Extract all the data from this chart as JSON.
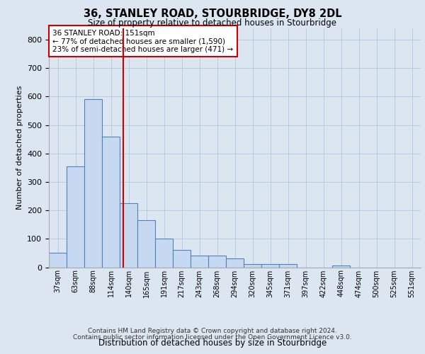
{
  "title": "36, STANLEY ROAD, STOURBRIDGE, DY8 2DL",
  "subtitle": "Size of property relative to detached houses in Stourbridge",
  "xlabel": "Distribution of detached houses by size in Stourbridge",
  "ylabel": "Number of detached properties",
  "footer_line1": "Contains HM Land Registry data © Crown copyright and database right 2024.",
  "footer_line2": "Contains public sector information licensed under the Open Government Licence v3.0.",
  "bar_labels": [
    "37sqm",
    "63sqm",
    "88sqm",
    "114sqm",
    "140sqm",
    "165sqm",
    "191sqm",
    "217sqm",
    "243sqm",
    "268sqm",
    "294sqm",
    "320sqm",
    "345sqm",
    "371sqm",
    "397sqm",
    "422sqm",
    "448sqm",
    "474sqm",
    "500sqm",
    "525sqm",
    "551sqm"
  ],
  "bar_values": [
    50,
    355,
    590,
    460,
    225,
    165,
    100,
    60,
    40,
    40,
    30,
    10,
    10,
    10,
    0,
    0,
    5,
    0,
    0,
    0,
    0
  ],
  "bar_color": "#c6d9f0",
  "bar_edge_color": "#4f81bd",
  "bg_color": "#dce6f1",
  "grid_color": "#b8cce4",
  "annotation_line1": "36 STANLEY ROAD: 151sqm",
  "annotation_line2": "← 77% of detached houses are smaller (1,590)",
  "annotation_line3": "23% of semi-detached houses are larger (471) →",
  "ann_box_color": "#ffffff",
  "ann_border_color": "#cc0000",
  "vline_x": 3.68,
  "vline_color": "#cc0000",
  "ylim_max": 840,
  "yticks": [
    0,
    100,
    200,
    300,
    400,
    500,
    600,
    700,
    800
  ]
}
